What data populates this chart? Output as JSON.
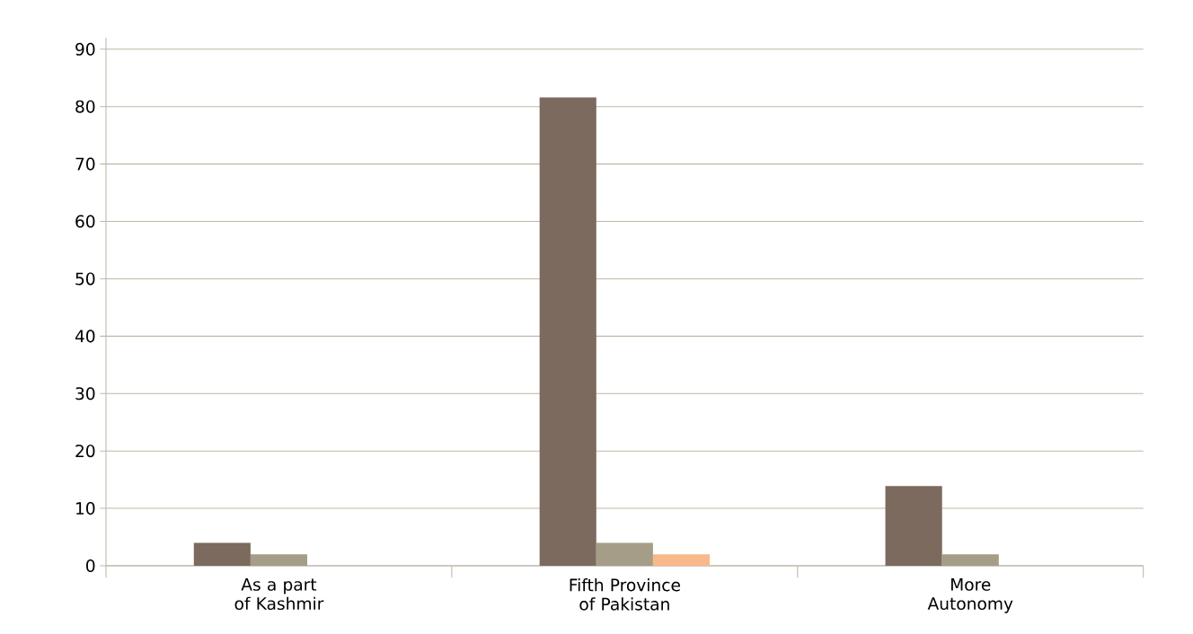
{
  "chart_data": {
    "type": "bar",
    "categories": [
      "As a part of Kashmir",
      "Fifth Province of Pakistan",
      "More Autonomy"
    ],
    "series": [
      {
        "color": "#7b6a5d",
        "values": [
          4,
          81.6,
          13.9
        ]
      },
      {
        "color": "#a59d87",
        "values": [
          2,
          4,
          2
        ]
      },
      {
        "color": "#f9b98b",
        "values": [
          0,
          2,
          0
        ]
      }
    ],
    "ylim": [
      0,
      92
    ],
    "yticks": [
      0,
      10,
      20,
      30,
      40,
      50,
      60,
      70,
      80,
      90
    ],
    "grid": "y"
  }
}
